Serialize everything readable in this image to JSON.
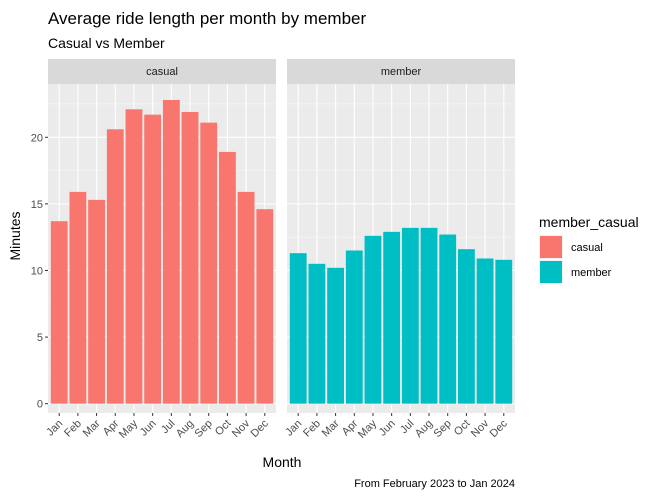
{
  "chart_data": {
    "type": "bar",
    "title": "Average ride length per month by member",
    "subtitle": "Casual vs Member",
    "xlabel": "Month",
    "ylabel": "Minutes",
    "caption": "From February 2023 to Jan 2024",
    "ylim": [
      -0.7,
      24
    ],
    "yticks": [
      0,
      5,
      10,
      15,
      20
    ],
    "grid": true,
    "legend_position": "right",
    "legend_title": "member_casual",
    "categories": [
      "Jan",
      "Feb",
      "Mar",
      "Apr",
      "May",
      "Jun",
      "Jul",
      "Aug",
      "Sep",
      "Oct",
      "Nov",
      "Dec"
    ],
    "series": [
      {
        "name": "casual",
        "color": "#F8766D",
        "values": [
          13.7,
          15.9,
          15.3,
          20.6,
          22.1,
          21.7,
          22.8,
          21.9,
          21.1,
          18.9,
          15.9,
          14.6
        ]
      },
      {
        "name": "member",
        "color": "#00BFC4",
        "values": [
          11.3,
          10.5,
          10.2,
          11.5,
          12.6,
          12.9,
          13.2,
          13.2,
          12.7,
          11.6,
          10.9,
          10.8
        ]
      }
    ]
  }
}
